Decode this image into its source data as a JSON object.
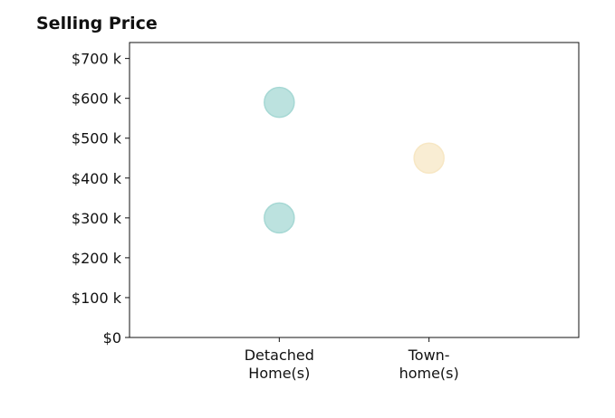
{
  "chart_data": {
    "type": "scatter",
    "title": "Selling Price",
    "xlabel": "",
    "ylabel": "",
    "categories": [
      [
        "Detached",
        "Home(s)"
      ],
      [
        "Town-",
        "home(s)"
      ]
    ],
    "y_ticks": [
      "$0",
      "$100 k",
      "$200 k",
      "$300 k",
      "$400 k",
      "$500 k",
      "$600 k",
      "$700 k"
    ],
    "y_tick_values": [
      0,
      100000,
      200000,
      300000,
      400000,
      500000,
      600000,
      700000
    ],
    "ylim": [
      0,
      740000
    ],
    "xlim": [
      -1,
      2
    ],
    "grid": false,
    "points": [
      {
        "category": 0,
        "y": 590000,
        "color": "#a6d8d4"
      },
      {
        "category": 0,
        "y": 300000,
        "color": "#a6d8d4"
      },
      {
        "category": 1,
        "y": 450000,
        "color": "#f7e7c4"
      }
    ]
  }
}
